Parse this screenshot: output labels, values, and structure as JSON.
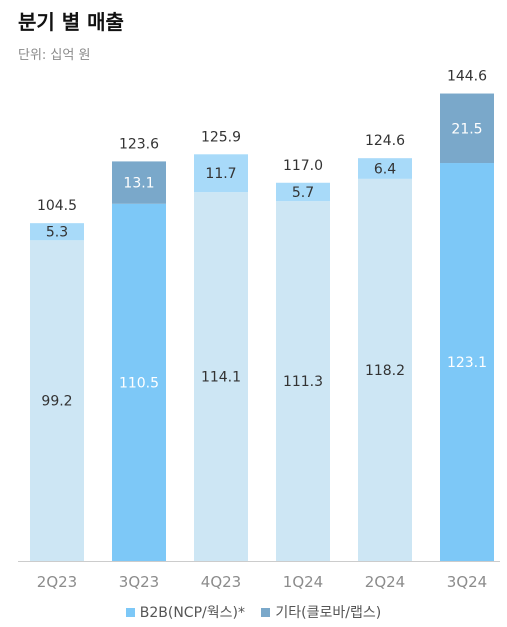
{
  "header": {
    "title": "분기 별 매출",
    "unit": "단위: 십억 원"
  },
  "colors": {
    "b2b": "#7dc8f7",
    "b2b_light": "#cde6f4",
    "other": "#7aa8ca",
    "other_light": "#a8daf9",
    "axis": "#cccccc",
    "text": "#333333",
    "tick": "#8c8c8c"
  },
  "chart_data": {
    "type": "bar",
    "stacked": true,
    "categories": [
      "2Q23",
      "3Q23",
      "4Q23",
      "1Q24",
      "2Q24",
      "3Q24"
    ],
    "highlighted": [
      "3Q23",
      "3Q24"
    ],
    "series": [
      {
        "name": "B2B(NCP/웍스)*",
        "values": [
          99.2,
          110.5,
          114.1,
          111.3,
          118.2,
          123.1
        ]
      },
      {
        "name": "기타(클로바/랩스)",
        "values": [
          5.3,
          13.1,
          11.7,
          5.7,
          6.4,
          21.5
        ]
      }
    ],
    "totals": [
      104.5,
      123.6,
      125.9,
      117.0,
      124.6,
      144.6
    ],
    "total_labels": [
      "104.5",
      "123.6",
      "125.9",
      "117.0",
      "124.6",
      "144.6"
    ],
    "b2b_labels": [
      "99.2",
      "110.5",
      "114.1",
      "111.3",
      "118.2",
      "123.1"
    ],
    "other_labels": [
      "5.3",
      "13.1",
      "11.7",
      "5.7",
      "6.4",
      "21.5"
    ],
    "ylim": [
      0,
      150
    ],
    "legend": "bottom-center"
  }
}
